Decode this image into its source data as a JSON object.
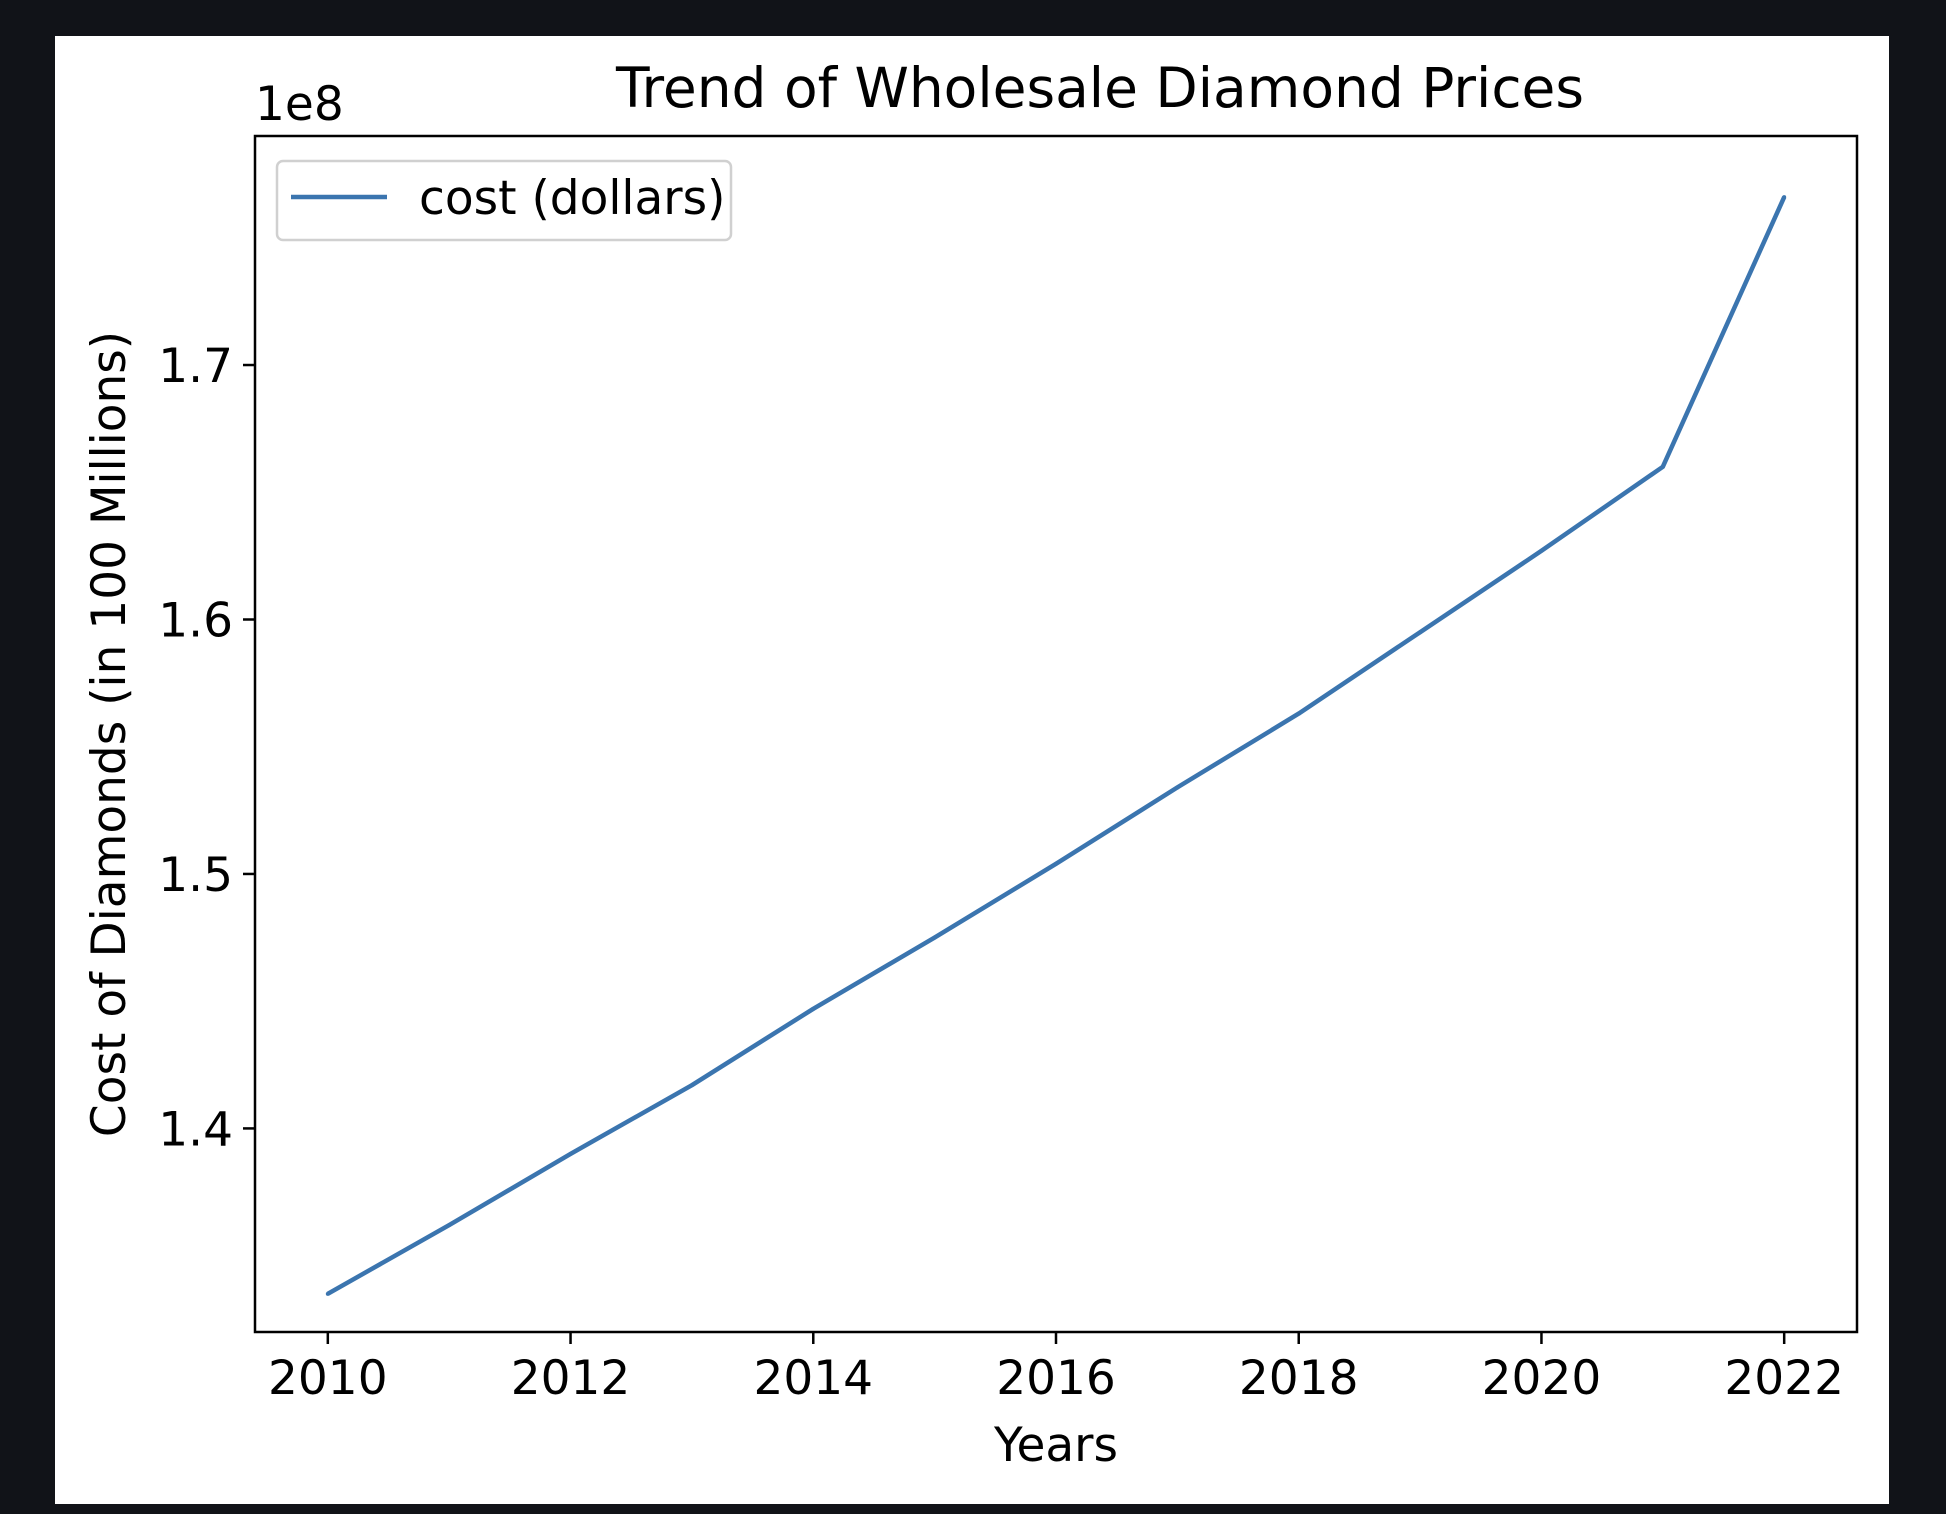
{
  "colors": {
    "page_background": "#111318",
    "figure_background": "#ffffff",
    "series": "#3b75af",
    "axis": "#000000"
  },
  "chart_data": {
    "type": "line",
    "title": "Trend of Wholesale Diamond Prices",
    "xlabel": "Years",
    "ylabel": "Cost of Diamonds (in 100 Millions)",
    "y_offset_label": "1e8",
    "x_ticks": [
      "2010",
      "2012",
      "2014",
      "2016",
      "2018",
      "2020",
      "2022"
    ],
    "y_ticks": [
      "1.4",
      "1.5",
      "1.6",
      "1.7"
    ],
    "xlim": [
      2009.4,
      2022.6
    ],
    "ylim": [
      132000000,
      179000000
    ],
    "grid": false,
    "legend_position": "upper-left",
    "x": [
      2010,
      2011,
      2012,
      2013,
      2014,
      2015,
      2016,
      2017,
      2018,
      2019,
      2020,
      2021,
      2022
    ],
    "series": [
      {
        "name": "cost (dollars)",
        "color": "#3b75af",
        "values": [
          133500000,
          136200000,
          139000000,
          141700000,
          144700000,
          147500000,
          150400000,
          153400000,
          156300000,
          159500000,
          162700000,
          166000000,
          176600000
        ]
      }
    ]
  }
}
